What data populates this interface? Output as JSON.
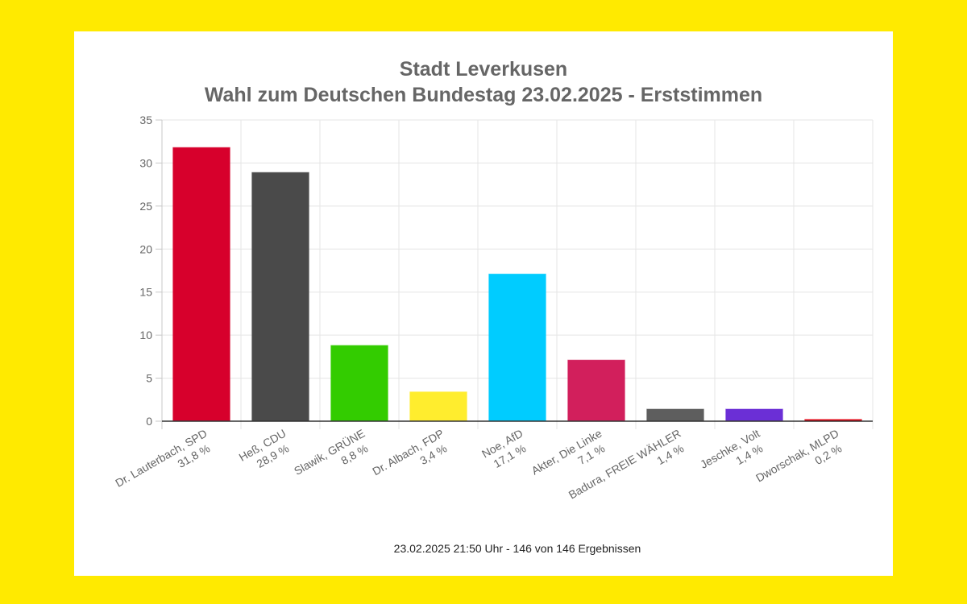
{
  "page": {
    "background_color": "#ffea00",
    "panel_color": "#ffffff"
  },
  "chart_data": {
    "type": "bar",
    "title": [
      "Stadt Leverkusen",
      "Wahl zum Deutschen Bundestag 23.02.2025  - Erststimmen"
    ],
    "xlabel": "",
    "ylabel": "",
    "ylim": [
      0,
      35
    ],
    "yticks": [
      0,
      5,
      10,
      15,
      20,
      25,
      30,
      35
    ],
    "grid": true,
    "legend": "none",
    "categories": [
      {
        "name": "Dr. Lauterbach, SPD",
        "value_label": "31,8 %"
      },
      {
        "name": "Heß, CDU",
        "value_label": "28,9 %"
      },
      {
        "name": "Slawik, GRÜNE",
        "value_label": "8,8 %"
      },
      {
        "name": "Dr. Albach, FDP",
        "value_label": "3,4 %"
      },
      {
        "name": "Noe, AfD",
        "value_label": "17,1 %"
      },
      {
        "name": "Akter, Die Linke",
        "value_label": "7,1 %"
      },
      {
        "name": "Badura, FREIE WÄHLER",
        "value_label": "1,4 %"
      },
      {
        "name": "Jeschke, Volt",
        "value_label": "1,4 %"
      },
      {
        "name": "Dworschak, MLPD",
        "value_label": "0,2 %"
      }
    ],
    "values": [
      31.8,
      28.9,
      8.8,
      3.4,
      17.1,
      7.1,
      1.4,
      1.4,
      0.2
    ],
    "colors": [
      "#d7002c",
      "#4a4a4a",
      "#33cc00",
      "#ffed2e",
      "#00ccff",
      "#d21f5c",
      "#5e5e5e",
      "#6b2fd6",
      "#e3000f"
    ],
    "footer": "23.02.2025 21:50 Uhr - 146 von 146 Ergebnissen"
  }
}
